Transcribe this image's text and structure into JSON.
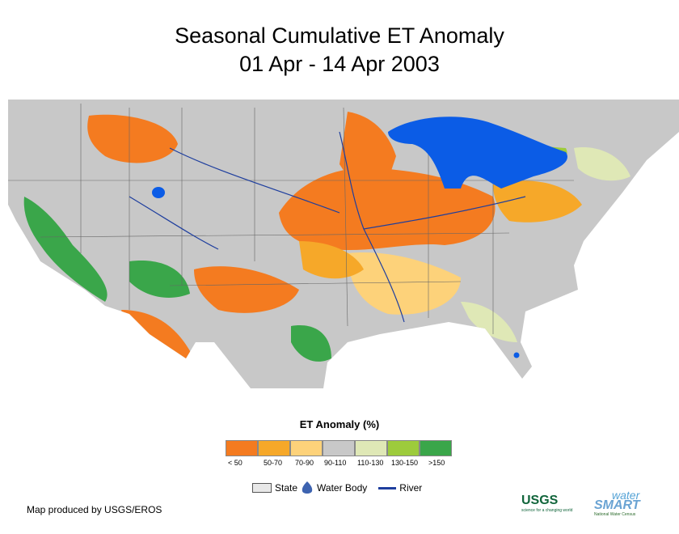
{
  "title_line1": "Seasonal Cumulative ET Anomaly",
  "title_line2": "01 Apr - 14 Apr 2003",
  "legend": {
    "title": "ET Anomaly (%)",
    "classes": [
      {
        "label": "< 50",
        "color": "#f47b20"
      },
      {
        "label": "50-70",
        "color": "#f6a829"
      },
      {
        "label": "70-90",
        "color": "#fdd27a"
      },
      {
        "label": "90-110",
        "color": "#c8c8c8"
      },
      {
        "label": "110-130",
        "color": "#dfe8b6"
      },
      {
        "label": "130-150",
        "color": "#9dcb3c"
      },
      {
        "label": ">150",
        "color": "#3aa64a"
      }
    ],
    "key": {
      "state": "State",
      "water_body": "Water Body",
      "river": "River"
    }
  },
  "credit": "Map produced by USGS/EROS",
  "logos": {
    "usgs": "USGS",
    "usgs_tagline": "science for a changing world",
    "water": "water",
    "smart": "SMART",
    "national": "National Water Census"
  },
  "colors": {
    "water": "#0b5ce6",
    "river": "#1e3e9e",
    "state_border": "#666666",
    "neutral": "#c8c8c8"
  }
}
